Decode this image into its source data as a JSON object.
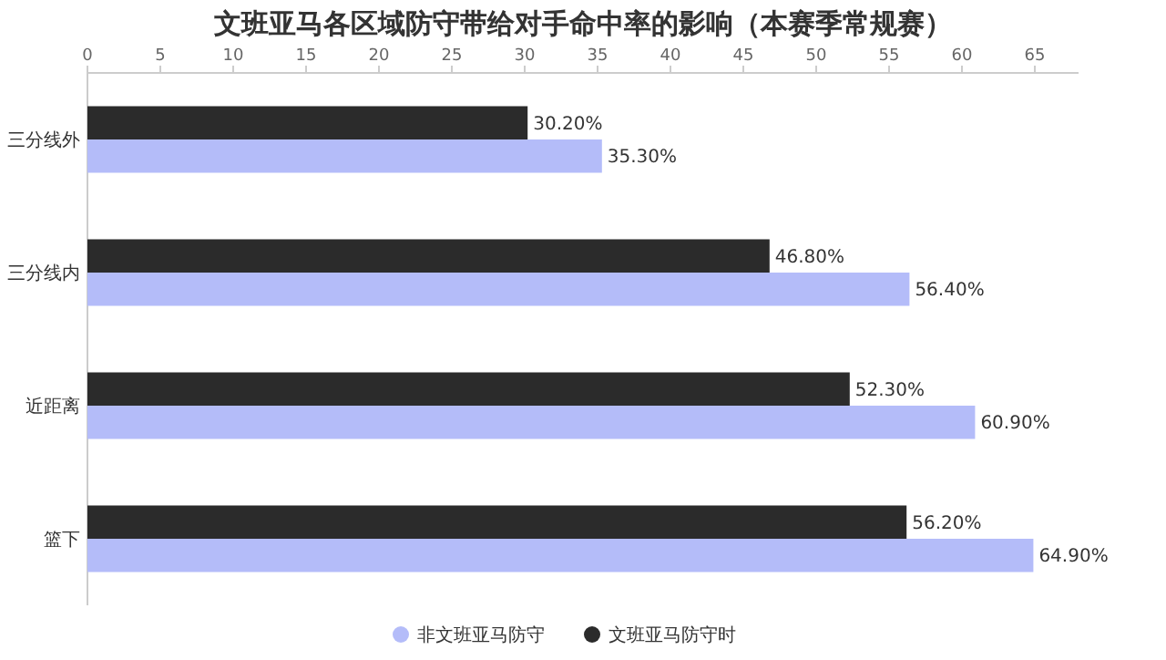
{
  "chart_data": {
    "type": "bar",
    "orientation": "horizontal",
    "title": "文班亚马各区域防守带给对手命中率的影响（本赛季常规赛）",
    "categories": [
      "三分线外",
      "三分线内",
      "近距离",
      "篮下"
    ],
    "series": [
      {
        "name": "非文班亚马防守",
        "color": "#b4bcf9",
        "values": [
          35.3,
          56.4,
          60.9,
          64.9
        ],
        "value_labels": [
          "35.30%",
          "56.40%",
          "60.90%",
          "64.90%"
        ]
      },
      {
        "name": "文班亚马防守时",
        "color": "#2b2b2b",
        "values": [
          30.2,
          46.8,
          52.3,
          56.2
        ],
        "value_labels": [
          "30.20%",
          "46.80%",
          "52.30%",
          "56.20%"
        ]
      }
    ],
    "xlim": [
      0,
      68
    ],
    "xticks": [
      0,
      5,
      10,
      15,
      20,
      25,
      30,
      35,
      40,
      45,
      50,
      55,
      60,
      65
    ],
    "grid": false,
    "legend": "bottom"
  }
}
